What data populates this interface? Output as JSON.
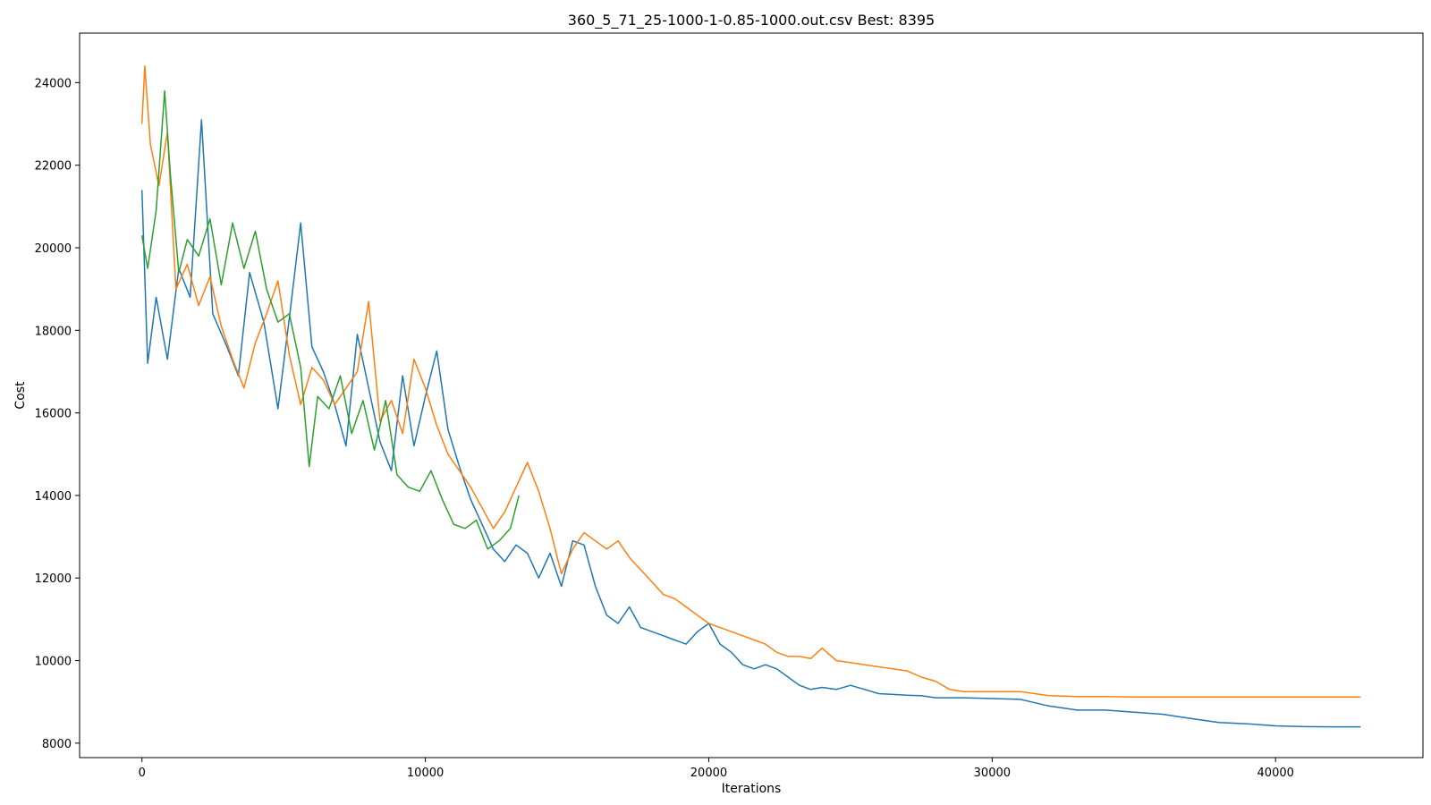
{
  "chart_data": {
    "type": "line",
    "title": "360_5_71_25-1000-1-0.85-1000.out.csv Best: 8395",
    "xlabel": "Iterations",
    "ylabel": "Cost",
    "xlim": [
      -2200,
      45200
    ],
    "ylim": [
      7650,
      25200
    ],
    "xticks": [
      0,
      10000,
      20000,
      30000,
      40000
    ],
    "yticks": [
      8000,
      10000,
      12000,
      14000,
      16000,
      18000,
      20000,
      22000,
      24000
    ],
    "grid": false,
    "legend": "none",
    "series": [
      {
        "color": "#1f77b4",
        "x": [
          0,
          200,
          500,
          900,
          1300,
          1700,
          2100,
          2500,
          3000,
          3400,
          3800,
          4300,
          4800,
          5200,
          5600,
          6000,
          6400,
          6800,
          7200,
          7600,
          8000,
          8400,
          8800,
          9200,
          9600,
          10000,
          10400,
          10800,
          11200,
          11600,
          12000,
          12400,
          12800,
          13200,
          13600,
          14000,
          14400,
          14800,
          15200,
          15600,
          16000,
          16400,
          16800,
          17200,
          17600,
          18000,
          18400,
          18800,
          19200,
          19600,
          20000,
          20400,
          20800,
          21200,
          21600,
          22000,
          22400,
          22800,
          23200,
          23600,
          24000,
          24500,
          25000,
          25500,
          26000,
          26500,
          27000,
          27500,
          28000,
          29000,
          30000,
          31000,
          32000,
          33000,
          34000,
          35000,
          36000,
          37000,
          38000,
          39000,
          40000,
          41000,
          42000,
          43000
        ],
        "values": [
          21400,
          17200,
          18800,
          17300,
          19500,
          18800,
          23100,
          18400,
          17600,
          16900,
          19400,
          18200,
          16100,
          18300,
          20600,
          17600,
          17000,
          16200,
          15200,
          17900,
          16600,
          15300,
          14600,
          16900,
          15200,
          16400,
          17500,
          15600,
          14700,
          13900,
          13300,
          12700,
          12400,
          12800,
          12600,
          12000,
          12600,
          11800,
          12900,
          12800,
          11800,
          11100,
          10900,
          11300,
          10800,
          10700,
          10600,
          10500,
          10400,
          10700,
          10900,
          10400,
          10200,
          9900,
          9800,
          9900,
          9800,
          9600,
          9400,
          9300,
          9350,
          9300,
          9400,
          9300,
          9200,
          9180,
          9160,
          9150,
          9100,
          9100,
          9080,
          9060,
          8900,
          8800,
          8800,
          8750,
          8700,
          8600,
          8500,
          8470,
          8420,
          8400,
          8395,
          8395
        ]
      },
      {
        "color": "#ff7f0e",
        "x": [
          0,
          100,
          300,
          600,
          900,
          1200,
          1600,
          2000,
          2400,
          2800,
          3200,
          3600,
          4000,
          4400,
          4800,
          5200,
          5600,
          6000,
          6400,
          6800,
          7200,
          7600,
          8000,
          8400,
          8800,
          9200,
          9600,
          10000,
          10400,
          10800,
          11200,
          11600,
          12000,
          12400,
          12800,
          13200,
          13600,
          14000,
          14400,
          14800,
          15200,
          15600,
          16000,
          16400,
          16800,
          17200,
          17600,
          18000,
          18400,
          18800,
          19200,
          19600,
          20000,
          20400,
          20800,
          21200,
          21600,
          22000,
          22400,
          22800,
          23200,
          23600,
          24000,
          24500,
          25000,
          25500,
          26000,
          26500,
          27000,
          27500,
          28000,
          28500,
          29000,
          30000,
          31000,
          32000,
          33000,
          34000,
          35000,
          36000,
          37000,
          38000,
          39000,
          40000,
          41000,
          42000,
          43000
        ],
        "values": [
          23000,
          24400,
          22500,
          21500,
          22800,
          19000,
          19600,
          18600,
          19300,
          18100,
          17300,
          16600,
          17700,
          18400,
          19200,
          17400,
          16200,
          17100,
          16800,
          16200,
          16600,
          17000,
          18700,
          15800,
          16300,
          15500,
          17300,
          16600,
          15700,
          15000,
          14600,
          14200,
          13700,
          13200,
          13600,
          14200,
          14800,
          14100,
          13200,
          12100,
          12700,
          13100,
          12900,
          12700,
          12900,
          12500,
          12200,
          11900,
          11600,
          11500,
          11300,
          11100,
          10900,
          10800,
          10700,
          10600,
          10500,
          10400,
          10200,
          10100,
          10100,
          10050,
          10300,
          10000,
          9950,
          9900,
          9850,
          9800,
          9750,
          9600,
          9500,
          9300,
          9250,
          9250,
          9250,
          9150,
          9130,
          9130,
          9120,
          9120,
          9120,
          9120,
          9120,
          9120,
          9120,
          9120,
          9120
        ]
      },
      {
        "color": "#2ca02c",
        "x": [
          0,
          200,
          500,
          800,
          1000,
          1300,
          1600,
          2000,
          2400,
          2800,
          3200,
          3600,
          4000,
          4400,
          4800,
          5200,
          5600,
          5900,
          6200,
          6600,
          7000,
          7400,
          7800,
          8200,
          8600,
          9000,
          9400,
          9800,
          10200,
          10600,
          11000,
          11400,
          11800,
          12200,
          12600,
          13000,
          13300
        ],
        "values": [
          20300,
          19500,
          20900,
          23800,
          21800,
          19400,
          20200,
          19800,
          20700,
          19100,
          20600,
          19500,
          20400,
          19000,
          18200,
          18400,
          17100,
          14700,
          16400,
          16100,
          16900,
          15500,
          16300,
          15100,
          16300,
          14500,
          14200,
          14100,
          14600,
          13900,
          13300,
          13200,
          13400,
          12700,
          12900,
          13200,
          14000
        ]
      }
    ]
  }
}
